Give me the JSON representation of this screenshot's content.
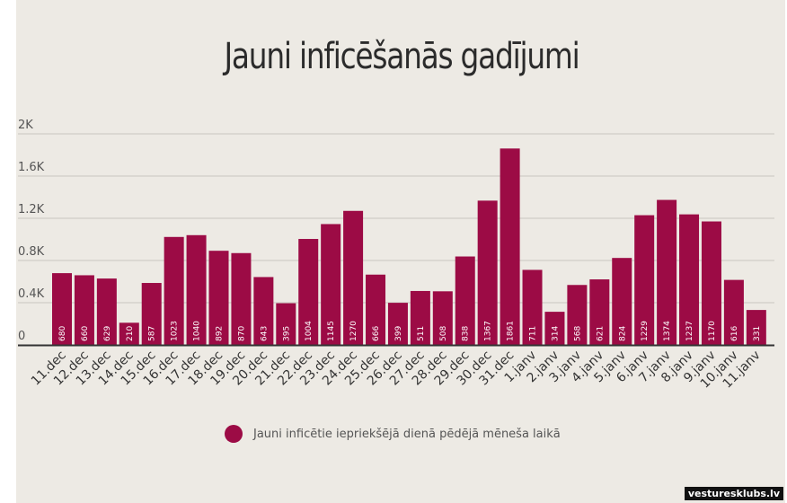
{
  "colors": {
    "bar": "#9c0b45",
    "background": "#edeae4",
    "grid": "#c9c6c0",
    "axis": "#333333"
  },
  "watermark": "vesturesklubs.lv",
  "chart_data": {
    "type": "bar",
    "title": "Jauni inficēšanās gadījumi",
    "xlabel": "",
    "ylabel": "",
    "ylim": [
      0,
      2000
    ],
    "yticks": [
      {
        "value": 0,
        "label": "0"
      },
      {
        "value": 400,
        "label": "0.4K"
      },
      {
        "value": 800,
        "label": "0.8K"
      },
      {
        "value": 1200,
        "label": "1.2K"
      },
      {
        "value": 1600,
        "label": "1.6K"
      },
      {
        "value": 2000,
        "label": "2K"
      }
    ],
    "grid": true,
    "legend_position": "bottom-center",
    "categories": [
      "11.dec",
      "12.dec",
      "13.dec",
      "14.dec",
      "15.dec",
      "16.dec",
      "17.dec",
      "18.dec",
      "19.dec",
      "20.dec",
      "21.dec",
      "22.dec",
      "23.dec",
      "24.dec",
      "25.dec",
      "26.dec",
      "27.dec",
      "28.dec",
      "29.dec",
      "30.dec",
      "31.dec",
      "1.janv",
      "2.janv",
      "3.janv",
      "4.janv",
      "5.janv",
      "6.janv",
      "7.janv",
      "8.janv",
      "9.janv",
      "10.janv",
      "11.janv"
    ],
    "series": [
      {
        "name": "Jauni inficētie iepriekšējā dienā pēdējā mēneša laikā",
        "values": [
          680,
          660,
          629,
          210,
          587,
          1023,
          1040,
          892,
          870,
          643,
          395,
          1004,
          1145,
          1270,
          666,
          399,
          511,
          508,
          838,
          1367,
          1861,
          711,
          314,
          568,
          621,
          824,
          1229,
          1374,
          1237,
          1170,
          616,
          331
        ]
      }
    ]
  }
}
